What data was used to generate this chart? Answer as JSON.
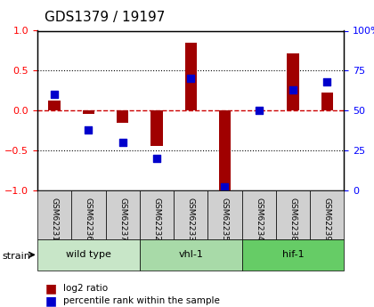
{
  "title": "GDS1379 / 19197",
  "samples": [
    "GSM62231",
    "GSM62236",
    "GSM62237",
    "GSM62232",
    "GSM62233",
    "GSM62235",
    "GSM62234",
    "GSM62238",
    "GSM62239"
  ],
  "log2_ratio": [
    0.13,
    -0.04,
    -0.15,
    -0.44,
    0.85,
    -1.0,
    0.0,
    0.72,
    0.22
  ],
  "percentile_rank": [
    60,
    38,
    30,
    20,
    70,
    2,
    50,
    63,
    68
  ],
  "groups": [
    {
      "label": "wild type",
      "start": 0,
      "end": 3,
      "color": "#c8e6c8"
    },
    {
      "label": "vhl-1",
      "start": 3,
      "end": 6,
      "color": "#a8e0a8"
    },
    {
      "label": "hif-1",
      "start": 6,
      "end": 9,
      "color": "#66cc66"
    }
  ],
  "ylim": [
    -1,
    1
  ],
  "yticks_left": [
    -1,
    -0.5,
    0,
    0.5,
    1
  ],
  "yticks_right": [
    0,
    25,
    50,
    75,
    100
  ],
  "bar_color": "#a00000",
  "dot_color": "#0000cc",
  "hline_color": "#cc0000",
  "grid_color": "#000000",
  "strain_label": "strain",
  "legend_bar": "log2 ratio",
  "legend_dot": "percentile rank within the sample"
}
